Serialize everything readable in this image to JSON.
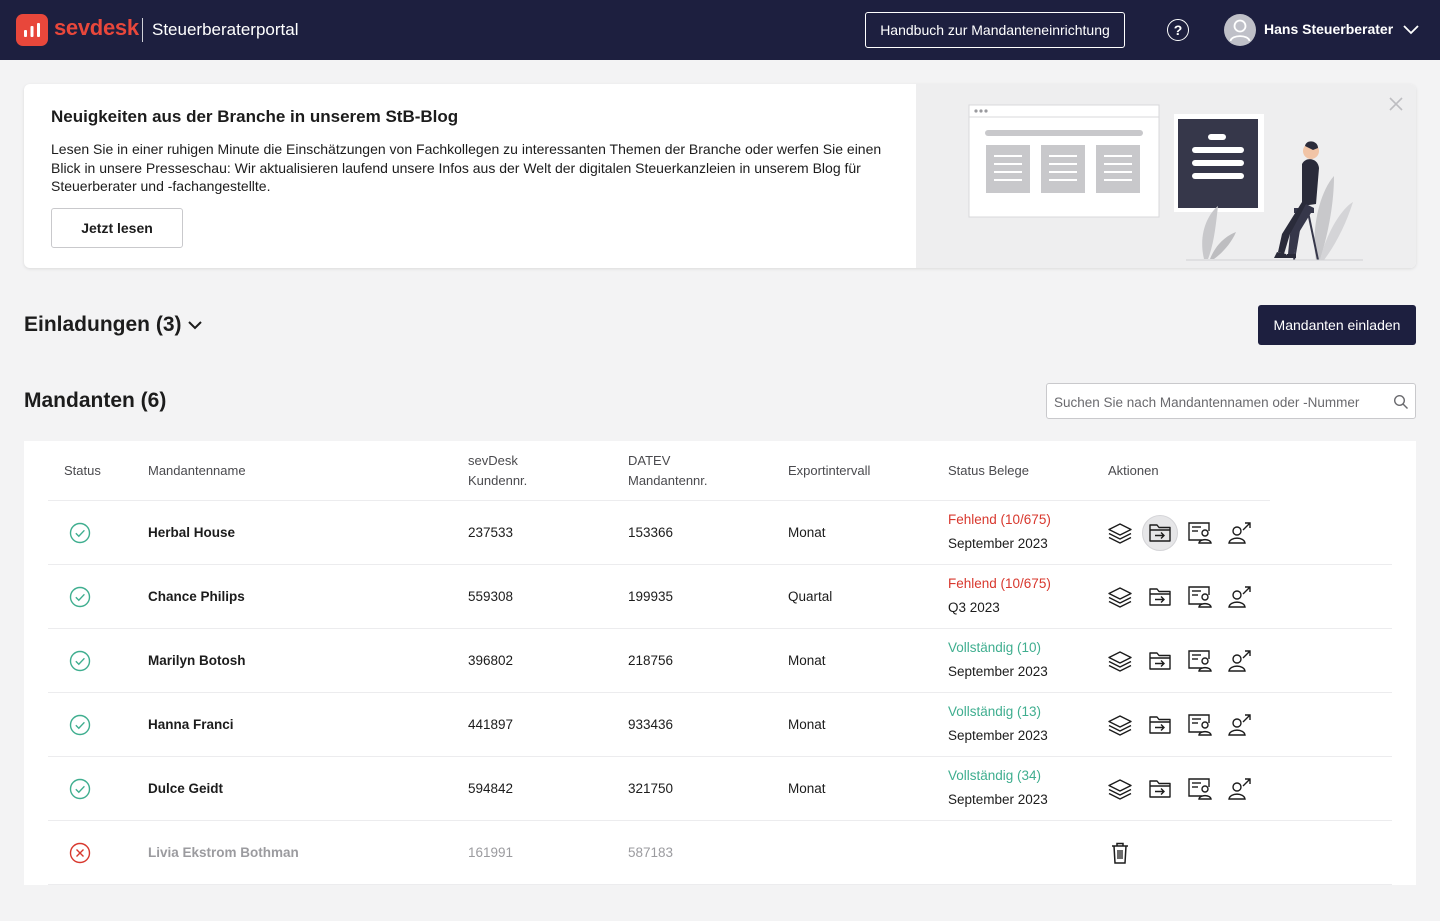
{
  "header": {
    "brand": "sevdesk",
    "portal": "Steuerberaterportal",
    "manual_button": "Handbuch zur Mandanteneinrichtung",
    "help_icon": "question-circle-icon",
    "user_name": "Hans Steuerberater"
  },
  "banner": {
    "title": "Neuigkeiten aus der Branche in unserem StB-Blog",
    "text": "Lesen Sie in einer ruhigen Minute die Einschätzungen von Fachkollegen zu interessanten Themen der Branche oder werfen Sie einen Blick in unsere Presseschau: Wir aktualisieren laufend unsere Infos aus der Welt der digitalen Steuerkanzleien in unserem Blog für Steuerberater und -fachangestellte.",
    "button": "Jetzt lesen"
  },
  "invitations": {
    "title": "Einladungen (3)",
    "invite_button": "Mandanten einladen"
  },
  "clients": {
    "title": "Mandanten (6)",
    "search_placeholder": "Suchen Sie nach Mandantennamen oder -Nummer",
    "columns": {
      "status": "Status",
      "name": "Mandantenname",
      "sevdesk_1": "sevDesk",
      "sevdesk_2": "Kundennr.",
      "datev_1": "DATEV",
      "datev_2": "Mandantennr.",
      "interval": "Exportintervall",
      "belege": "Status Belege",
      "actions": "Aktionen"
    },
    "rows": [
      {
        "status": "active",
        "name": "Herbal House",
        "sevdesk": "237533",
        "datev": "153366",
        "interval": "Monat",
        "belege_status": "Fehlend (10/675)",
        "belege_type": "missing",
        "period": "September 2023"
      },
      {
        "status": "active",
        "name": "Chance Philips",
        "sevdesk": "559308",
        "datev": "199935",
        "interval": "Quartal",
        "belege_status": "Fehlend (10/675)",
        "belege_type": "missing",
        "period": "Q3 2023"
      },
      {
        "status": "active",
        "name": "Marilyn Botosh",
        "sevdesk": "396802",
        "datev": "218756",
        "interval": "Monat",
        "belege_status": "Vollständig (10)",
        "belege_type": "complete",
        "period": "September 2023"
      },
      {
        "status": "active",
        "name": "Hanna Franci",
        "sevdesk": "441897",
        "datev": "933436",
        "interval": "Monat",
        "belege_status": "Vollständig (13)",
        "belege_type": "complete",
        "period": "September 2023"
      },
      {
        "status": "active",
        "name": "Dulce Geidt",
        "sevdesk": "594842",
        "datev": "321750",
        "interval": "Monat",
        "belege_status": "Vollständig (34)",
        "belege_type": "complete",
        "period": "September 2023"
      },
      {
        "status": "inactive",
        "name": "Livia Ekstrom Bothman",
        "sevdesk": "161991",
        "datev": "587183",
        "interval": "",
        "belege_status": "",
        "belege_type": "",
        "period": ""
      }
    ]
  },
  "colors": {
    "navy": "#1d1f3f",
    "brand_red": "#e8473b",
    "missing_red": "#d8382e",
    "complete_green": "#3fae8f"
  }
}
